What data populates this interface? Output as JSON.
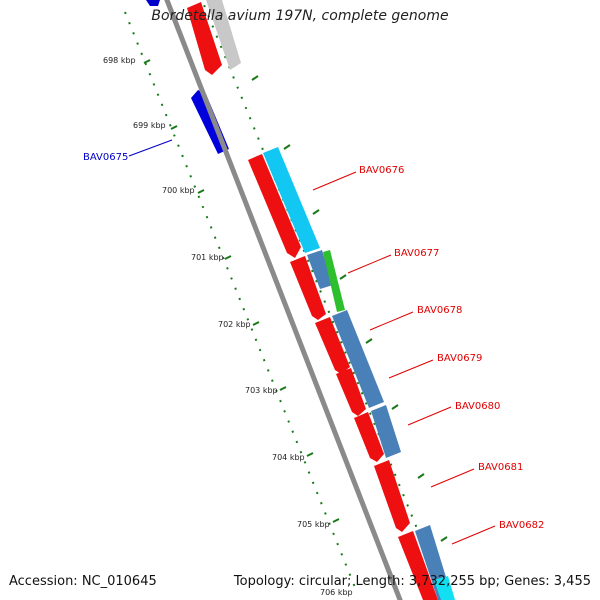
{
  "title": "Bordetella avium 197N, complete genome",
  "footer": {
    "accession": "Accession: NC_010645",
    "topology": "Topology: circular; Length: 3,732,255 bp; Genes: 3,455"
  },
  "colors": {
    "forward_label": "#e00000",
    "reverse_label": "#0000cc",
    "backbone": "#8a8a8a",
    "ticks": "#1a7a1a"
  },
  "ruler": {
    "unit": "kbp",
    "major_ticks": [
      {
        "position_kbp": 698,
        "label": "698 kbp"
      },
      {
        "position_kbp": 699,
        "label": "699 kbp"
      },
      {
        "position_kbp": 700,
        "label": "700 kbp"
      },
      {
        "position_kbp": 701,
        "label": "701 kbp"
      },
      {
        "position_kbp": 702,
        "label": "702 kbp"
      },
      {
        "position_kbp": 703,
        "label": "703 kbp"
      },
      {
        "position_kbp": 704,
        "label": "704 kbp"
      },
      {
        "position_kbp": 705,
        "label": "705 kbp"
      },
      {
        "position_kbp": 706,
        "label": "706 kbp"
      }
    ]
  },
  "gene_labels": [
    {
      "id": "BAV0675",
      "label": "BAV0675",
      "strand": "reverse"
    },
    {
      "id": "BAV0676",
      "label": "BAV0676",
      "strand": "forward"
    },
    {
      "id": "BAV0677",
      "label": "BAV0677",
      "strand": "forward"
    },
    {
      "id": "BAV0678",
      "label": "BAV0678",
      "strand": "forward"
    },
    {
      "id": "BAV0679",
      "label": "BAV0679",
      "strand": "forward"
    },
    {
      "id": "BAV0680",
      "label": "BAV0680",
      "strand": "forward"
    },
    {
      "id": "BAV0681",
      "label": "BAV0681",
      "strand": "forward"
    },
    {
      "id": "BAV0682",
      "label": "BAV0682",
      "strand": "forward"
    }
  ]
}
